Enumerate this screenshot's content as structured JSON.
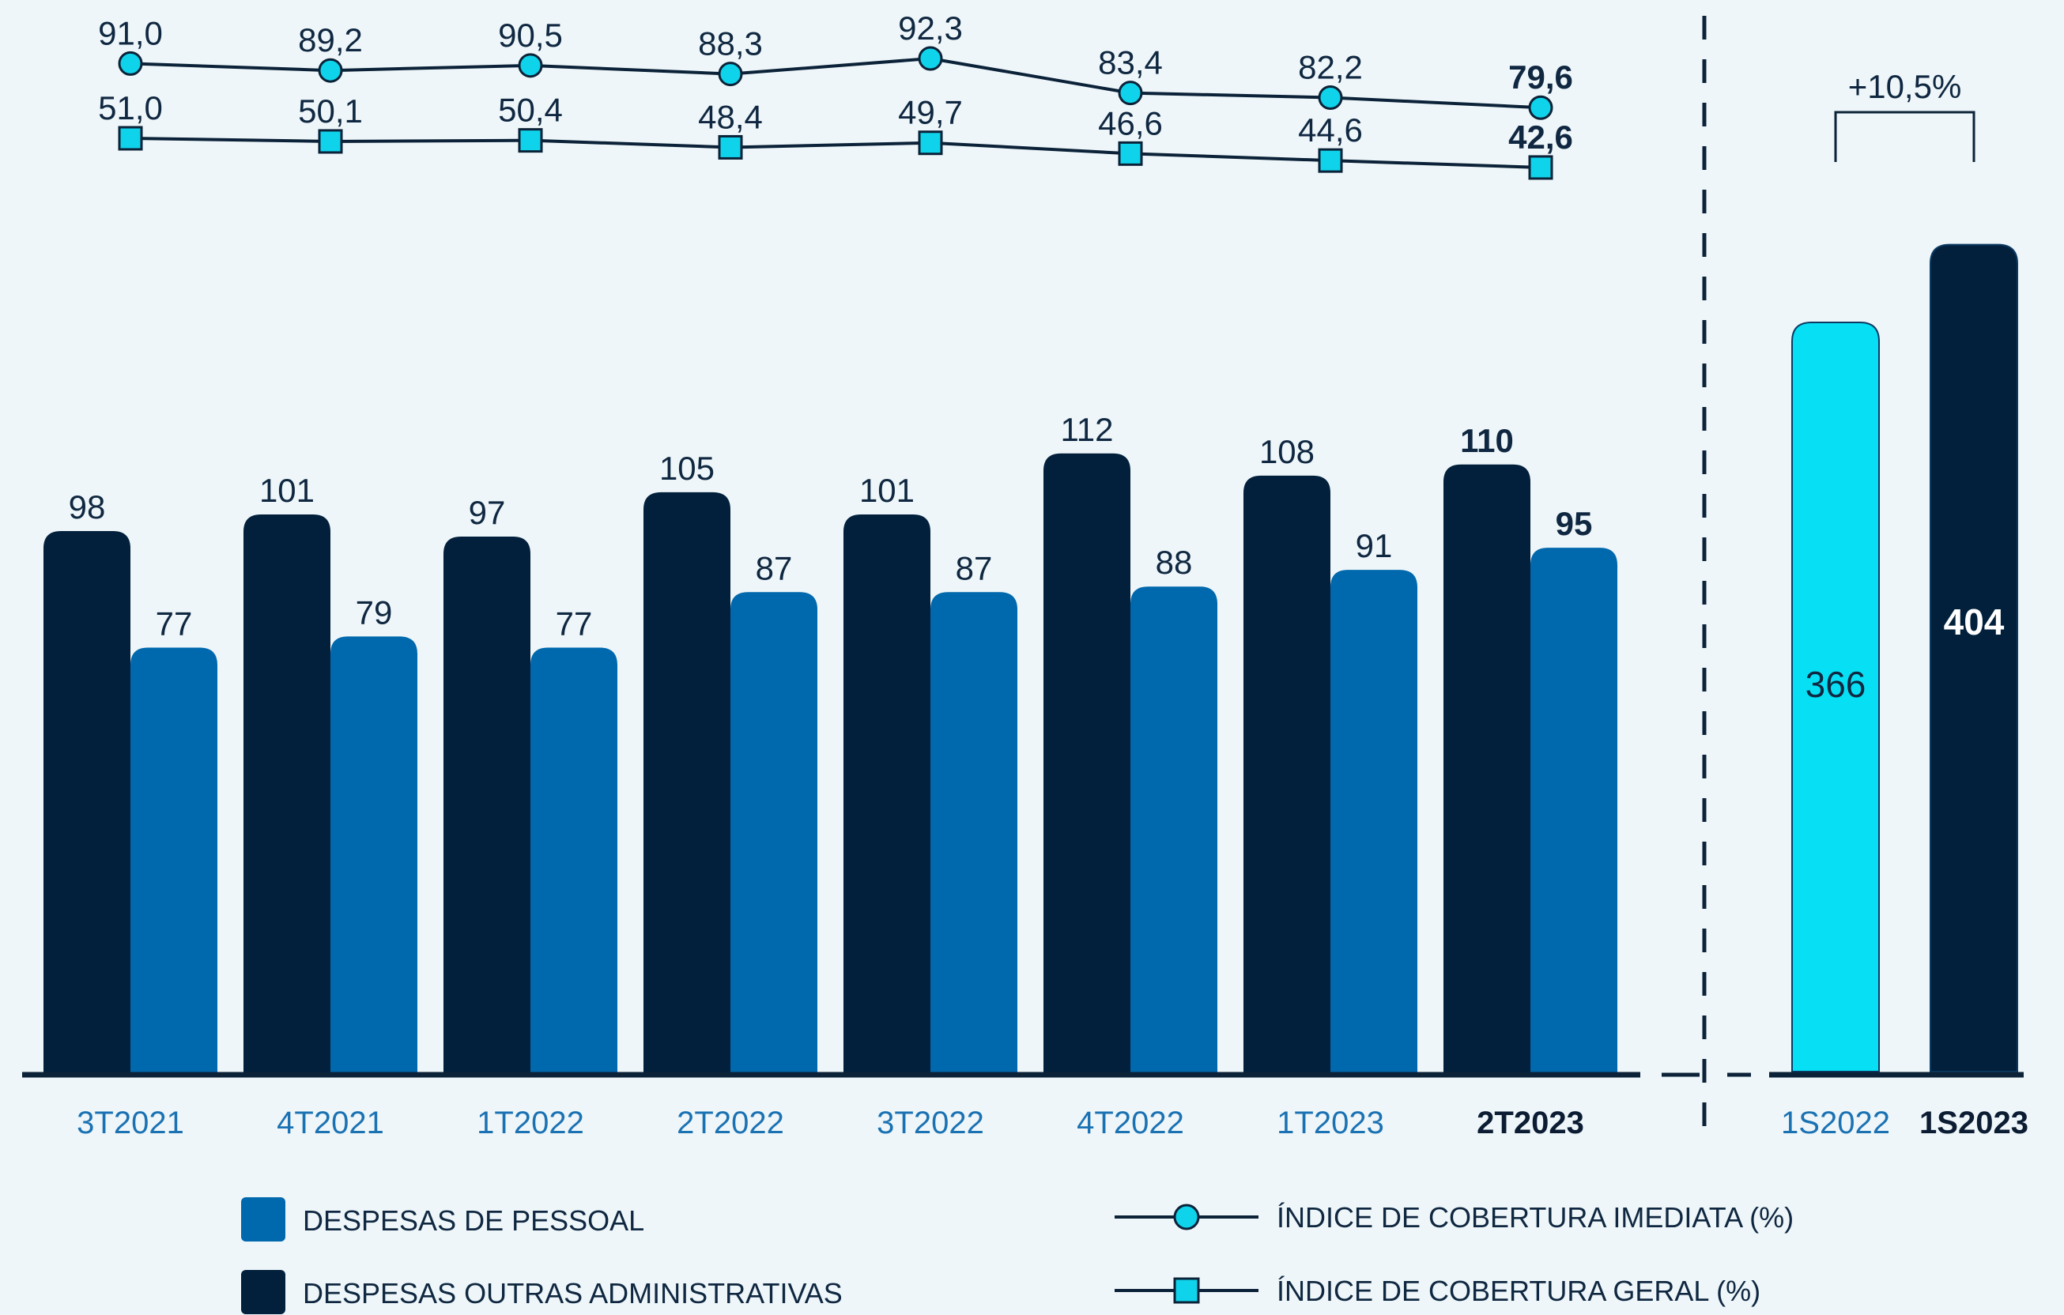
{
  "colors": {
    "background": "#eef6f9",
    "outras_admin": "#02203c",
    "pessoal": "#0068ad",
    "semester_2022": "#07e0f4",
    "line": "#0b2238",
    "marker": "#0fd3ea",
    "tick_text": "#1b72b3"
  },
  "chart_data": {
    "type": "bar",
    "categories": [
      "3T2021",
      "4T2021",
      "1T2022",
      "2T2022",
      "3T2022",
      "4T2022",
      "1T2023",
      "2T2023"
    ],
    "highlight_category": "2T2023",
    "series": [
      {
        "name": "DESPESAS OUTRAS ADMINISTRATIVAS",
        "values": [
          98,
          101,
          97,
          105,
          101,
          112,
          108,
          110
        ]
      },
      {
        "name": "DESPESAS DE PESSOAL",
        "values": [
          77,
          79,
          77,
          87,
          87,
          88,
          91,
          95
        ]
      }
    ],
    "lines": [
      {
        "name": "ÍNDICE DE COBERTURA IMEDIATA (%)",
        "marker": "circle",
        "values": [
          91.0,
          89.2,
          90.5,
          88.3,
          92.3,
          83.4,
          82.2,
          79.6
        ],
        "labels": [
          "91,0",
          "89,2",
          "90,5",
          "88,3",
          "92,3",
          "83,4",
          "82,2",
          "79,6"
        ]
      },
      {
        "name": "ÍNDICE DE COBERTURA GERAL (%)",
        "marker": "square",
        "values": [
          51.0,
          50.1,
          50.4,
          48.4,
          49.7,
          46.6,
          44.6,
          42.6
        ],
        "labels": [
          "51,0",
          "50,1",
          "50,4",
          "48,4",
          "49,7",
          "46,6",
          "44,6",
          "42,6"
        ]
      }
    ],
    "semesters": {
      "categories": [
        "1S2022",
        "1S2023"
      ],
      "values": [
        366,
        404
      ],
      "change_label": "+10,5%"
    },
    "legend": [
      {
        "label": "DESPESAS DE PESSOAL",
        "kind": "box",
        "color": "#0068ad"
      },
      {
        "label": "DESPESAS OUTRAS ADMINISTRATIVAS",
        "kind": "box",
        "color": "#02203c"
      },
      {
        "label": "ÍNDICE DE COBERTURA IMEDIATA (%)",
        "kind": "circle"
      },
      {
        "label": "ÍNDICE DE COBERTURA GERAL (%)",
        "kind": "square"
      }
    ]
  }
}
